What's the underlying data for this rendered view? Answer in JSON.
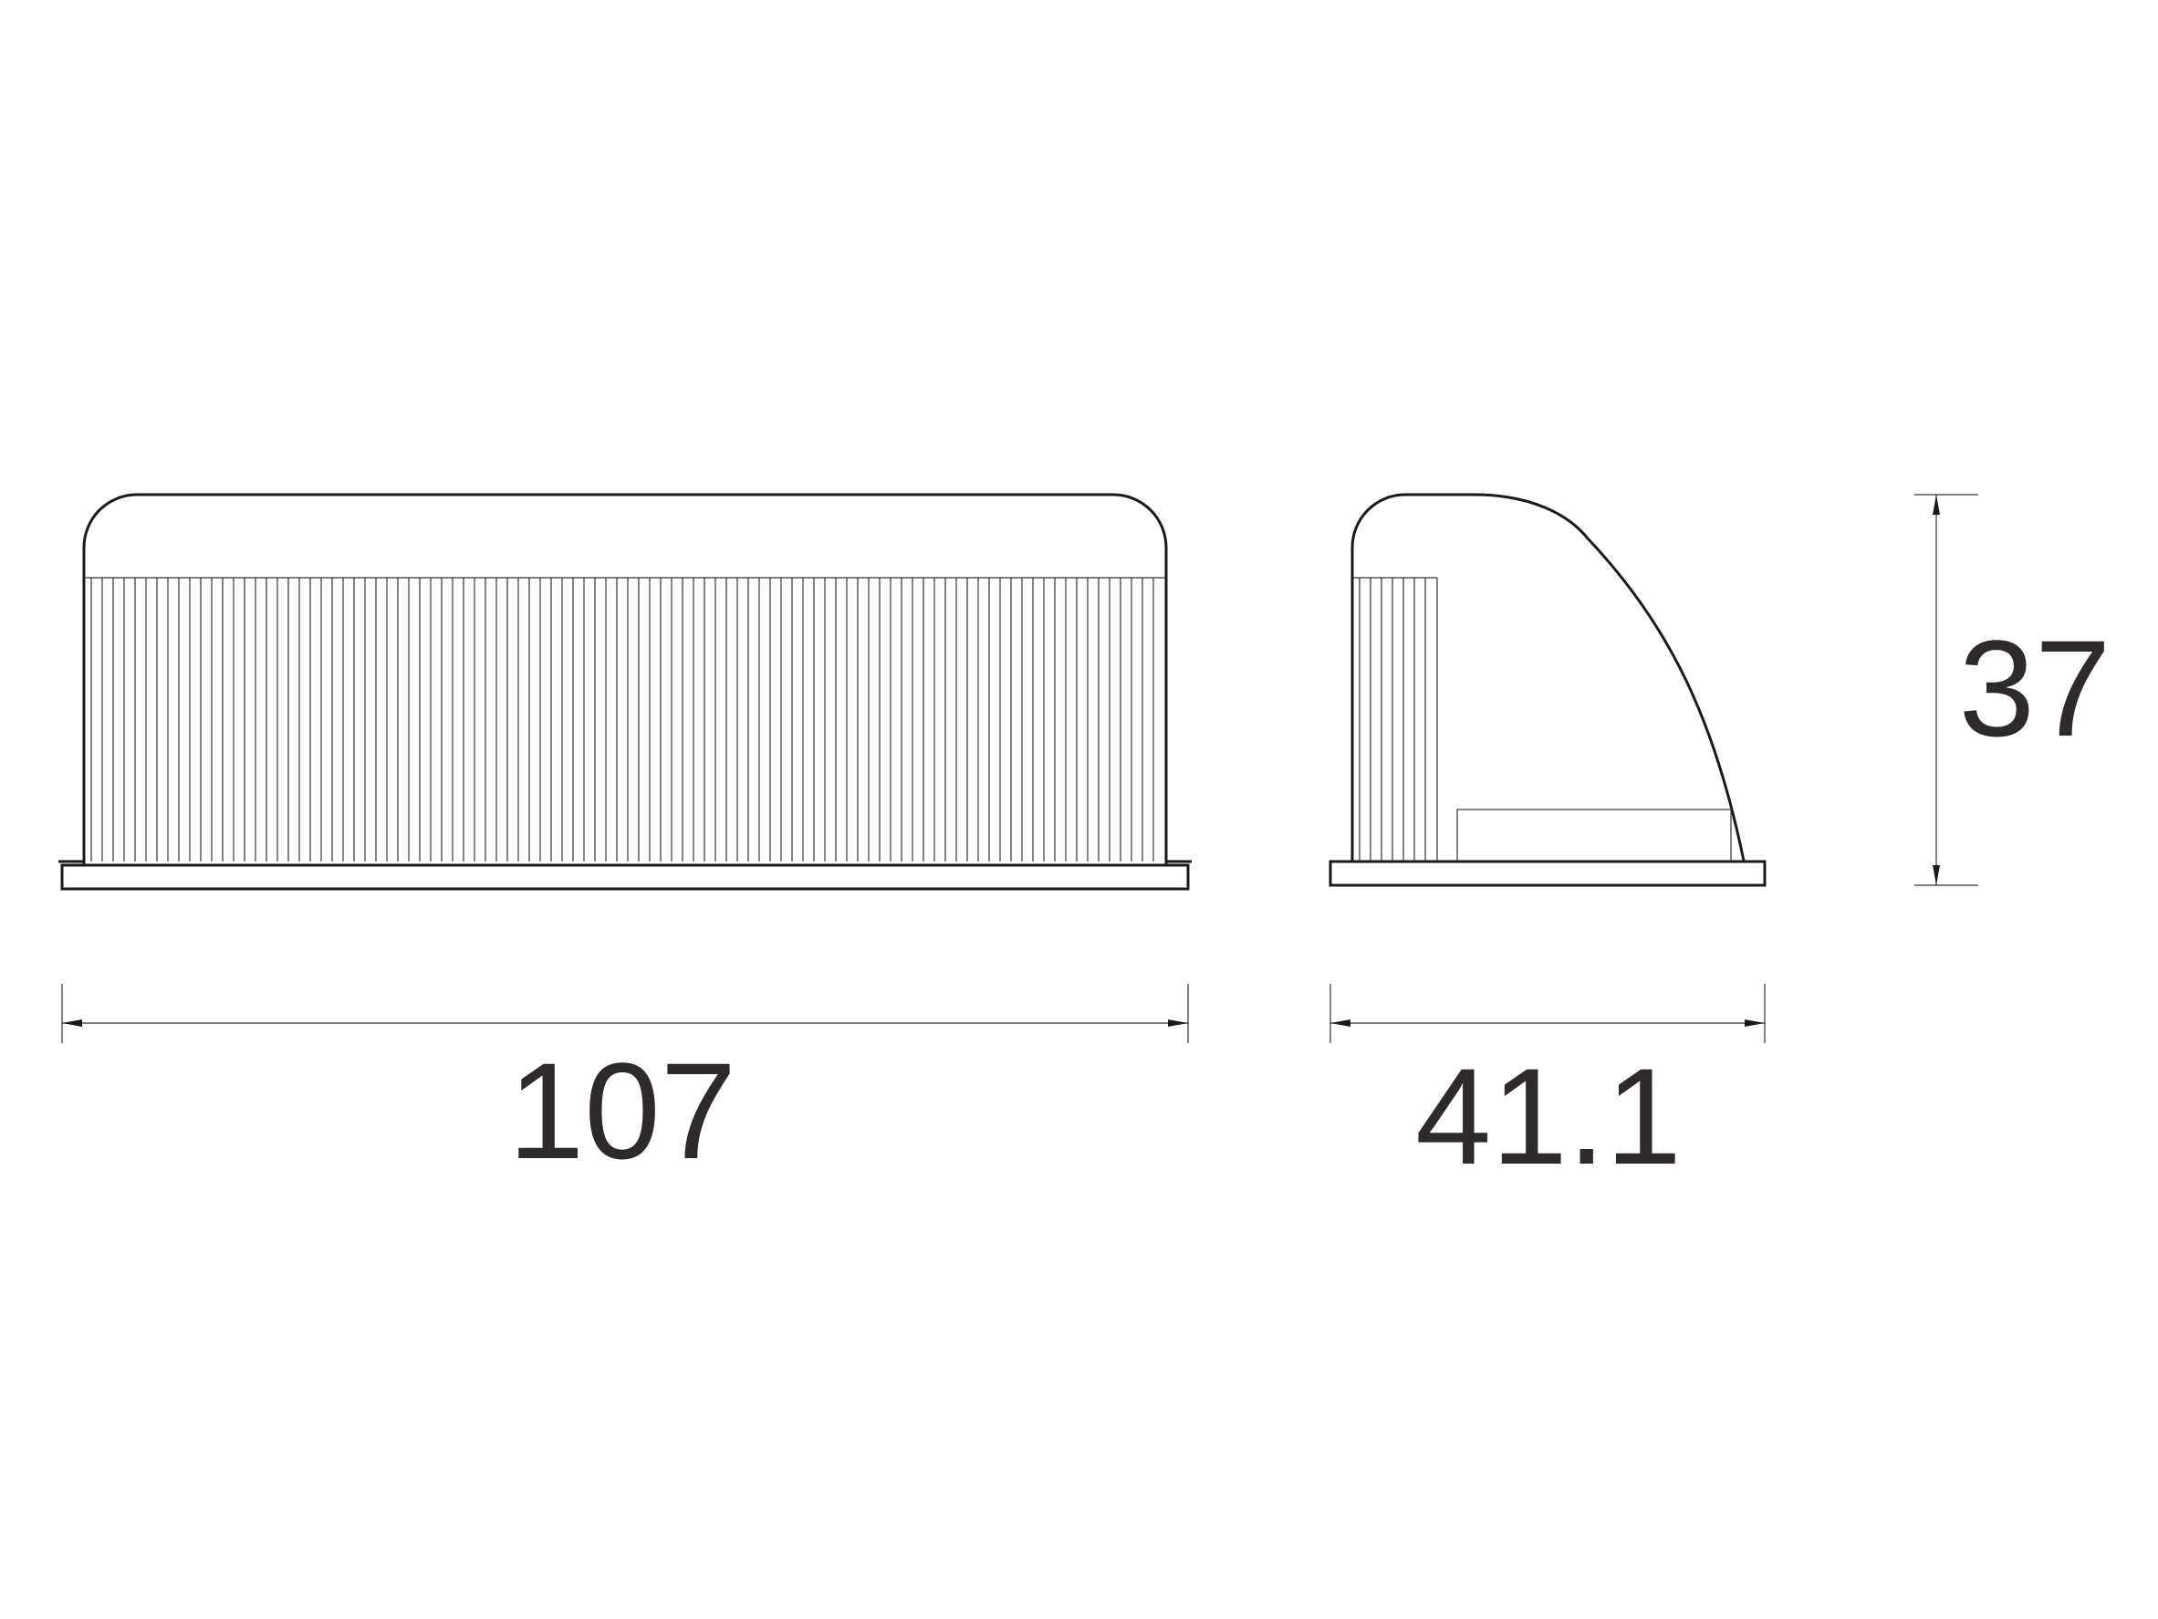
{
  "dimensions": {
    "front_width": "107",
    "side_depth": "41.1",
    "height": "37"
  },
  "colors": {
    "line": "#1a1a1a",
    "text": "#2f2a2a",
    "background": "#ffffff"
  }
}
